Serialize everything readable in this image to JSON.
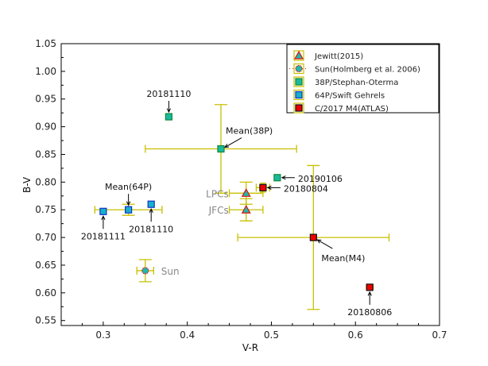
{
  "chart_data": {
    "type": "scatter",
    "title": "",
    "xlabel": "V-R",
    "ylabel": "B-V",
    "xlim": [
      0.25,
      0.7
    ],
    "ylim": [
      0.541,
      1.05
    ],
    "xticks": [
      0.3,
      0.4,
      0.5,
      0.6,
      0.7
    ],
    "xtick_labels": [
      "0.3",
      "0.4",
      "0.5",
      "0.6",
      "0.7"
    ],
    "yticks": [
      0.55,
      0.6,
      0.65,
      0.7,
      0.75,
      0.8,
      0.85,
      0.9,
      0.95,
      1.0,
      1.05
    ],
    "ytick_labels": [
      "0.55",
      "0.60",
      "0.65",
      "0.70",
      "0.75",
      "0.80",
      "0.85",
      "0.90",
      "0.95",
      "1.00",
      "1.05"
    ],
    "grid": false,
    "legend_position": "top-right",
    "errorbar_color": "#c8c000",
    "series": [
      {
        "name": "Jewitt(2015)",
        "marker": "triangle",
        "fill": "#20b8b0",
        "edge": "#dd1111",
        "points": [
          {
            "x": 0.47,
            "y": 0.78,
            "xerr": 0.02,
            "yerr": 0.02,
            "label": "LPCs",
            "label_style": "gray",
            "label_side": "left"
          },
          {
            "x": 0.47,
            "y": 0.75,
            "xerr": 0.02,
            "yerr": 0.02,
            "label": "JFCs",
            "label_style": "gray",
            "label_side": "left"
          }
        ]
      },
      {
        "name": "Sun(Holmberg et al. 2006)",
        "marker": "circle",
        "fill": "#20b8b0",
        "edge": "#dd1111",
        "points": [
          {
            "x": 0.35,
            "y": 0.64,
            "xerr": 0.01,
            "yerr": 0.02,
            "label": "Sun",
            "label_style": "gray",
            "label_side": "right"
          }
        ]
      },
      {
        "name": "38P/Stephan-Oterma",
        "marker": "square",
        "fill": "#1ab8a0",
        "edge": "#118833",
        "points": [
          {
            "x": 0.378,
            "y": 0.918,
            "xerr": 0.003,
            "yerr": 0.005,
            "label": "20181110",
            "label_side": "above"
          },
          {
            "x": 0.44,
            "y": 0.86,
            "xerr": 0.09,
            "yerr": 0.08,
            "label": "Mean(38P)",
            "label_side": "upper-right"
          },
          {
            "x": 0.507,
            "y": 0.808,
            "xerr": 0.003,
            "yerr": 0.003,
            "label": "20190106",
            "label_side": "right"
          }
        ]
      },
      {
        "name": "64P/Swift Gehrels",
        "marker": "square",
        "fill": "#18b0c8",
        "edge": "#1133cc",
        "points": [
          {
            "x": 0.3,
            "y": 0.747,
            "xerr": 0.003,
            "yerr": 0.005,
            "label": "20181111",
            "label_side": "below"
          },
          {
            "x": 0.33,
            "y": 0.75,
            "xerr": 0.04,
            "yerr": 0.01,
            "label": "Mean(64P)",
            "label_side": "above"
          },
          {
            "x": 0.357,
            "y": 0.76,
            "xerr": 0.003,
            "yerr": 0.005,
            "label": "20181110",
            "label_side": "below"
          }
        ]
      },
      {
        "name": "C/2017 M4(ATLAS)",
        "marker": "square",
        "fill": "#ee0000",
        "edge": "#111111",
        "points": [
          {
            "x": 0.49,
            "y": 0.79,
            "xerr": 0.008,
            "yerr": 0.008,
            "label": "20180804",
            "label_side": "right"
          },
          {
            "x": 0.55,
            "y": 0.7,
            "xerr": 0.09,
            "yerr": 0.13,
            "label": "Mean(M4)",
            "label_side": "lower-right"
          },
          {
            "x": 0.617,
            "y": 0.61,
            "xerr": 0.004,
            "yerr": 0.004,
            "label": "20180806",
            "label_side": "below"
          }
        ]
      }
    ]
  }
}
